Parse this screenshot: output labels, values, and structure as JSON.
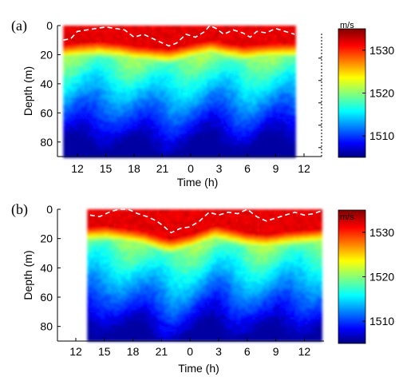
{
  "figure": {
    "panels": [
      {
        "label": "(a)",
        "xlabel": "Time  (h)",
        "ylabel": "Depth (m)",
        "colorbar_unit": "m/s",
        "xticks": [
          "12",
          "15",
          "18",
          "21",
          "0",
          "3",
          "6",
          "9",
          "12"
        ],
        "yticks": [
          "0",
          "20",
          "40",
          "60",
          "80"
        ],
        "cbticks": [
          "1530",
          "1520",
          "1510"
        ]
      },
      {
        "label": "(b)",
        "xlabel": "Time (h)",
        "ylabel": "Depth (m)",
        "colorbar_unit": "m/s",
        "xticks": [
          "12",
          "15",
          "18",
          "21",
          "0",
          "3",
          "6",
          "9",
          "12"
        ],
        "yticks": [
          "0",
          "20",
          "40",
          "60",
          "80"
        ],
        "cbticks": [
          "1530",
          "1520",
          "1510"
        ]
      }
    ]
  },
  "chart_data": [
    {
      "type": "heatmap",
      "title": "",
      "xlabel": "Time  (h)",
      "ylabel": "Depth (m)",
      "x_ticks": [
        "12",
        "15",
        "18",
        "21",
        "0",
        "3",
        "6",
        "9",
        "12"
      ],
      "y_ticks": [
        0,
        20,
        40,
        60,
        80
      ],
      "y_range": [
        0,
        90
      ],
      "y_inverted": true,
      "data_x_range_hours": [
        10.5,
        35.2
      ],
      "colorbar": {
        "label": "m/s",
        "range": [
          1505,
          1535
        ],
        "ticks": [
          1510,
          1520,
          1530
        ],
        "colormap": "jet"
      },
      "mixed_layer_depth_profile": {
        "x_hours": [
          10.5,
          11.3,
          12.0,
          13.0,
          14.0,
          15.0,
          16.0,
          17.0,
          18.0,
          19.0,
          20.0,
          21.0,
          21.7,
          22.5,
          23.5,
          24.5,
          25.5,
          26.0,
          26.7,
          27.5,
          28.5,
          29.5,
          30.3,
          31.0,
          32.0,
          33.0,
          34.0,
          35.0
        ],
        "depth_m": [
          10,
          9,
          4,
          3,
          2,
          1,
          2,
          3,
          8,
          6,
          9,
          12,
          14,
          12,
          6,
          8,
          4,
          0,
          2,
          6,
          3,
          5,
          8,
          4,
          5,
          2,
          4,
          6
        ]
      },
      "isotach_profile": {
        "x_hours": [
          10.5,
          12.0,
          14.0,
          16.0,
          18.0,
          20.0,
          21.7,
          23.0,
          24.5,
          26.0,
          27.5,
          29.5,
          31.0,
          33.0,
          35.0
        ],
        "depth_m": [
          16,
          15,
          14,
          15,
          17,
          18,
          19,
          17,
          15,
          13,
          15,
          17,
          16,
          15,
          15
        ]
      }
    },
    {
      "type": "heatmap",
      "title": "",
      "xlabel": "Time (h)",
      "ylabel": "Depth (m)",
      "x_ticks": [
        "12",
        "15",
        "18",
        "21",
        "0",
        "3",
        "6",
        "9",
        "12"
      ],
      "y_ticks": [
        0,
        20,
        40,
        60,
        80
      ],
      "y_range": [
        0,
        90
      ],
      "y_inverted": true,
      "data_x_range_hours": [
        13.2,
        37.8
      ],
      "colorbar": {
        "label": "m/s",
        "range": [
          1505,
          1535
        ],
        "ticks": [
          1510,
          1520,
          1530
        ],
        "colormap": "jet"
      },
      "mixed_layer_depth_profile": {
        "x_hours": [
          13.5,
          14.5,
          15.5,
          16.5,
          17.5,
          18.5,
          19.5,
          20.5,
          21.3,
          22.0,
          23.0,
          24.0,
          25.0,
          26.0,
          27.0,
          28.0,
          29.0,
          30.0,
          31.0,
          32.0,
          33.0,
          34.0,
          35.0,
          36.0,
          37.0,
          37.8
        ],
        "depth_m": [
          4,
          5,
          2,
          0,
          0,
          3,
          5,
          8,
          12,
          16,
          13,
          12,
          8,
          2,
          4,
          2,
          3,
          0,
          5,
          8,
          6,
          4,
          2,
          4,
          3,
          1
        ]
      },
      "isotach_profile": {
        "x_hours": [
          13.2,
          15.0,
          17.0,
          19.0,
          21.0,
          22.0,
          24.0,
          26.5,
          28.0,
          30.0,
          32.0,
          34.0,
          36.0,
          37.8
        ],
        "depth_m": [
          15,
          14,
          16,
          18,
          22,
          23,
          20,
          14,
          16,
          19,
          20,
          18,
          17,
          16
        ]
      }
    }
  ]
}
